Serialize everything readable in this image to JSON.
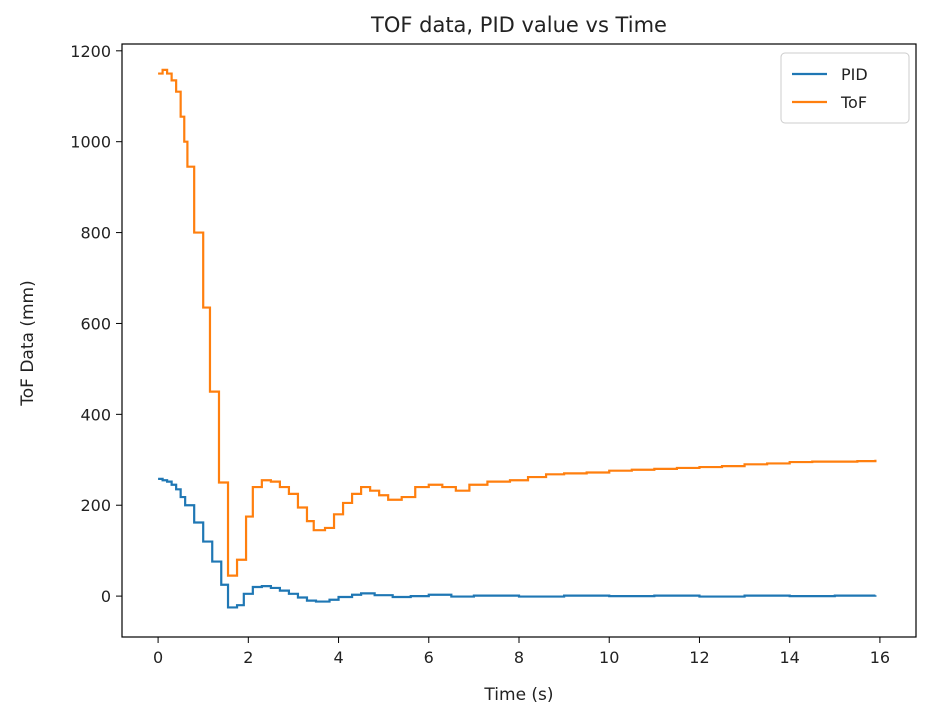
{
  "chart_data": {
    "type": "line",
    "title": "TOF data, PID value vs Time",
    "xlabel": "Time (s)",
    "ylabel": "ToF Data (mm)",
    "xlim": [
      -0.8,
      16.8
    ],
    "ylim": [
      -90,
      1215
    ],
    "xticks": [
      0,
      2,
      4,
      6,
      8,
      10,
      12,
      14,
      16
    ],
    "yticks": [
      0,
      200,
      400,
      600,
      800,
      1000,
      1200
    ],
    "grid": false,
    "legend_position": "top-right",
    "series": [
      {
        "name": "PID",
        "color": "#1f77b4",
        "step": true,
        "points": [
          [
            0,
            258
          ],
          [
            0.1,
            255
          ],
          [
            0.2,
            252
          ],
          [
            0.3,
            245
          ],
          [
            0.4,
            235
          ],
          [
            0.5,
            218
          ],
          [
            0.6,
            200
          ],
          [
            0.8,
            162
          ],
          [
            1.0,
            120
          ],
          [
            1.2,
            76
          ],
          [
            1.4,
            25
          ],
          [
            1.55,
            -25
          ],
          [
            1.75,
            -20
          ],
          [
            1.9,
            5
          ],
          [
            2.1,
            20
          ],
          [
            2.3,
            22
          ],
          [
            2.5,
            18
          ],
          [
            2.7,
            12
          ],
          [
            2.9,
            5
          ],
          [
            3.1,
            -3
          ],
          [
            3.3,
            -10
          ],
          [
            3.5,
            -12
          ],
          [
            3.8,
            -8
          ],
          [
            4.0,
            -2
          ],
          [
            4.3,
            3
          ],
          [
            4.5,
            6
          ],
          [
            4.8,
            2
          ],
          [
            5.2,
            -2
          ],
          [
            5.6,
            0
          ],
          [
            6.0,
            3
          ],
          [
            6.5,
            -1
          ],
          [
            7.0,
            1
          ],
          [
            8.0,
            -1
          ],
          [
            9.0,
            1
          ],
          [
            10.0,
            0
          ],
          [
            11.0,
            1
          ],
          [
            12.0,
            -1
          ],
          [
            13.0,
            1
          ],
          [
            14.0,
            0
          ],
          [
            15.0,
            1
          ],
          [
            15.9,
            2
          ]
        ]
      },
      {
        "name": "ToF",
        "color": "#ff7f0e",
        "step": true,
        "points": [
          [
            0,
            1150
          ],
          [
            0.1,
            1158
          ],
          [
            0.2,
            1150
          ],
          [
            0.3,
            1135
          ],
          [
            0.4,
            1110
          ],
          [
            0.5,
            1055
          ],
          [
            0.58,
            1000
          ],
          [
            0.65,
            945
          ],
          [
            0.8,
            800
          ],
          [
            1.0,
            635
          ],
          [
            1.15,
            450
          ],
          [
            1.35,
            250
          ],
          [
            1.55,
            45
          ],
          [
            1.75,
            80
          ],
          [
            1.95,
            175
          ],
          [
            2.1,
            240
          ],
          [
            2.3,
            255
          ],
          [
            2.5,
            252
          ],
          [
            2.7,
            240
          ],
          [
            2.9,
            225
          ],
          [
            3.1,
            195
          ],
          [
            3.3,
            165
          ],
          [
            3.45,
            145
          ],
          [
            3.7,
            150
          ],
          [
            3.9,
            180
          ],
          [
            4.1,
            205
          ],
          [
            4.3,
            225
          ],
          [
            4.5,
            240
          ],
          [
            4.7,
            232
          ],
          [
            4.9,
            222
          ],
          [
            5.1,
            212
          ],
          [
            5.4,
            218
          ],
          [
            5.7,
            240
          ],
          [
            6.0,
            245
          ],
          [
            6.3,
            240
          ],
          [
            6.6,
            232
          ],
          [
            6.9,
            245
          ],
          [
            7.3,
            252
          ],
          [
            7.8,
            255
          ],
          [
            8.2,
            262
          ],
          [
            8.6,
            268
          ],
          [
            9.0,
            270
          ],
          [
            9.5,
            272
          ],
          [
            10.0,
            276
          ],
          [
            10.5,
            278
          ],
          [
            11.0,
            280
          ],
          [
            11.5,
            282
          ],
          [
            12.0,
            284
          ],
          [
            12.5,
            286
          ],
          [
            13.0,
            290
          ],
          [
            13.5,
            292
          ],
          [
            14.0,
            295
          ],
          [
            14.5,
            296
          ],
          [
            15.0,
            296
          ],
          [
            15.5,
            297
          ],
          [
            15.9,
            300
          ]
        ]
      }
    ]
  }
}
